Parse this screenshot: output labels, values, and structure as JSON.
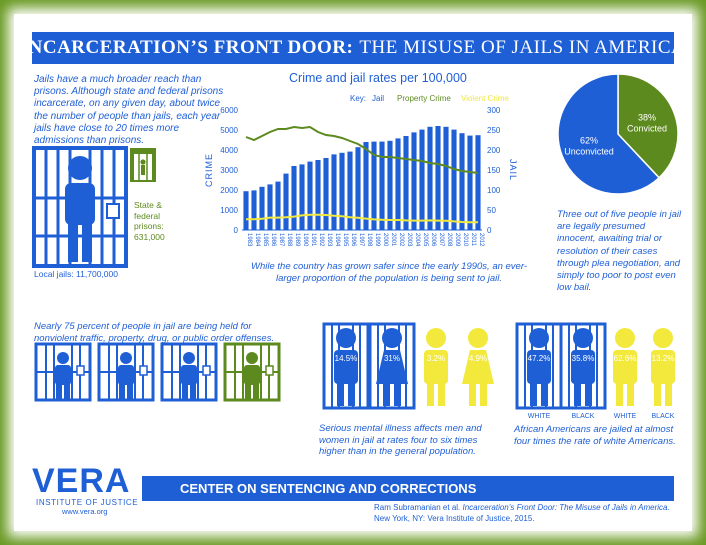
{
  "title": {
    "bold": "INCARCERATION’S FRONT DOOR:",
    "rest": "THE MISUSE OF JAILS IN AMERICA"
  },
  "intro": "Jails have a much broader reach than prisons. Although state and federal prisons incarcerate, on any given day, about twice the number of people than jails, each year jails have close to 20 times more admissions than prisons.",
  "state_label": [
    "State &",
    "federal",
    "prisons:",
    "631,000"
  ],
  "local_label": "Local jails: 11,700,000",
  "chart_caption": "While the country has grown safer since the early 1990s, an ever-larger proportion of the population is being sent to jail.",
  "pie_text": "Three out of five people in jail are legally presumed innocent, awaiting trial or resolution of their cases through plea negotiation, and simply too poor to post even low bail.",
  "nonviolent": "Nearly 75 percent of people in jail are being held for nonviolent traffic, property, drug, or public order offenses.",
  "mental": "Serious mental illness affects men and women in jail at rates four to six times higher than in the general population.",
  "race": "African Americans are jailed at almost four times the rate of white Americans.",
  "gender_pcts": [
    "14.5%",
    "31%",
    "3.2%",
    "4.9%"
  ],
  "race_pcts": [
    "47.2%",
    "35.8%",
    "62.6%",
    "13.2%"
  ],
  "race_labels": [
    "WHITE",
    "BLACK",
    "WHITE",
    "BLACK"
  ],
  "footer": "CENTER ON SENTENCING AND CORRECTIONS",
  "vera": {
    "name": "VERA",
    "sub": "INSTITUTE OF JUSTICE",
    "url": "www.vera.org"
  },
  "citation": {
    "author": "Ram Subramanian et al.",
    "title": "Incarceration’s Front Door: The Misuse of Jails in America.",
    "pub": "New York, NY: Vera Institute of Justice, 2015."
  },
  "colors": {
    "blue": "#1f5fd6",
    "green": "#5d8a1e",
    "yellow": "#f2e93c"
  },
  "chart_data": [
    {
      "type": "bar",
      "title": "Crime and jail rates per 100,000",
      "ylabel_left": "CRIME",
      "ylabel_right": "JAIL",
      "legend": {
        "label": "Key:",
        "items": [
          "Jail",
          "Property Crime",
          "Violent Crime"
        ]
      },
      "left_ticks": [
        "6000",
        "5000",
        "4000",
        "3000",
        "2000",
        "1000",
        "0"
      ],
      "right_ticks": [
        "300",
        "250",
        "200",
        "150",
        "100",
        "50",
        "0"
      ],
      "ylim_left": [
        0,
        6000
      ],
      "ylim_right": [
        0,
        300
      ],
      "categories": [
        "1983",
        "1984",
        "1985",
        "1986",
        "1987",
        "1988",
        "1989",
        "1990",
        "1991",
        "1992",
        "1993",
        "1994",
        "1995",
        "1996",
        "1997",
        "1998",
        "1999",
        "2000",
        "2001",
        "2002",
        "2003",
        "2004",
        "2005",
        "2006",
        "2007",
        "2008",
        "2009",
        "2010",
        "2011",
        "2012"
      ],
      "series": [
        {
          "name": "Jail",
          "kind": "bar",
          "axis": "right",
          "color": "#1f5fd6",
          "values": [
            97,
            99,
            108,
            114,
            121,
            141,
            160,
            164,
            171,
            175,
            180,
            189,
            193,
            196,
            207,
            220,
            221,
            221,
            223,
            229,
            235,
            244,
            251,
            258,
            260,
            258,
            251,
            242,
            236,
            237
          ]
        },
        {
          "name": "Property Crime",
          "kind": "line",
          "axis": "left",
          "color": "#5d8a1e",
          "values": [
            4650,
            4500,
            4700,
            4900,
            5050,
            5050,
            5150,
            5100,
            5150,
            4900,
            4750,
            4700,
            4600,
            4450,
            4300,
            4050,
            3750,
            3650,
            3650,
            3600,
            3550,
            3500,
            3450,
            3350,
            3300,
            3200,
            3050,
            2950,
            2900,
            2850
          ]
        },
        {
          "name": "Violent Crime",
          "kind": "line",
          "axis": "left",
          "color": "#f2e93c",
          "values": [
            540,
            540,
            560,
            620,
            620,
            640,
            670,
            730,
            760,
            760,
            750,
            710,
            690,
            640,
            610,
            570,
            530,
            510,
            500,
            500,
            480,
            470,
            470,
            480,
            470,
            460,
            430,
            400,
            390,
            390
          ]
        }
      ]
    },
    {
      "type": "pie",
      "labels": [
        "Convicted",
        "Unconvicted"
      ],
      "values": [
        38,
        62
      ],
      "value_labels": [
        "38%",
        "62%"
      ],
      "colors": [
        "#5d8a1e",
        "#1f5fd6"
      ]
    }
  ]
}
